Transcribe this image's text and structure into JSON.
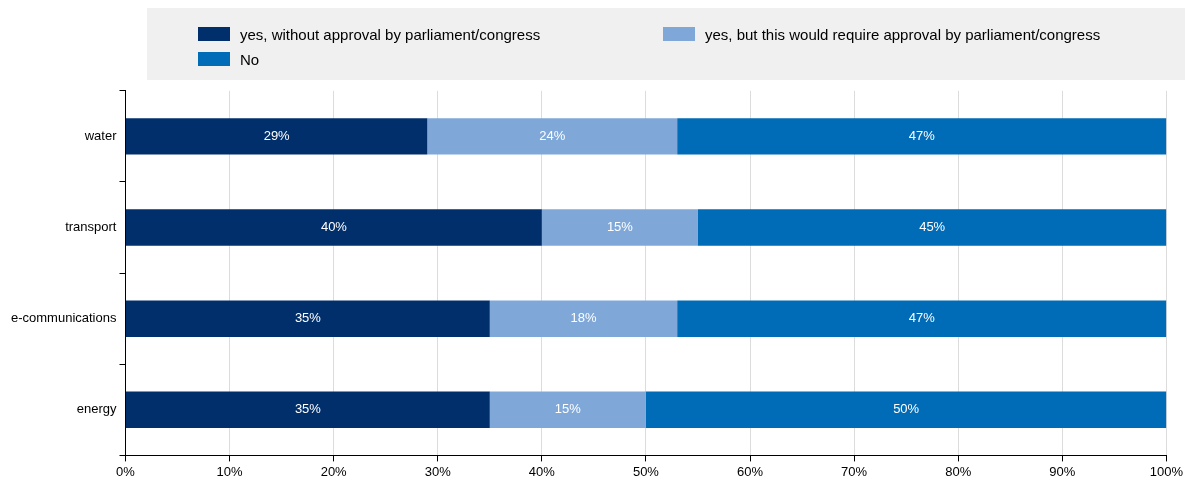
{
  "chart_data": {
    "type": "bar",
    "orientation": "horizontal",
    "stacked": true,
    "categories": [
      "water",
      "transport",
      "e-communications",
      "energy"
    ],
    "series": [
      {
        "name": "yes, without approval by parliament/congress",
        "color": "#002f6c",
        "values": [
          29,
          40,
          35,
          35
        ],
        "value_labels": [
          "29%",
          "40%",
          "35%",
          "35%"
        ]
      },
      {
        "name": "yes, but this would require approval by parliament/congress",
        "color": "#7fa8d9",
        "values": [
          24,
          15,
          18,
          15
        ],
        "value_labels": [
          "24%",
          "15%",
          "18%",
          "15%"
        ]
      },
      {
        "name": "No",
        "color": "#006bb6",
        "values": [
          47,
          45,
          47,
          50
        ],
        "value_labels": [
          "47%",
          "45%",
          "47%",
          "50%"
        ]
      }
    ],
    "xlim": [
      0,
      100
    ],
    "xticks": [
      {
        "value": 0,
        "label": "0%"
      },
      {
        "value": 10,
        "label": "10%"
      },
      {
        "value": 20,
        "label": "20%"
      },
      {
        "value": 30,
        "label": "30%"
      },
      {
        "value": 40,
        "label": "40%"
      },
      {
        "value": 50,
        "label": "50%"
      },
      {
        "value": 60,
        "label": "60%"
      },
      {
        "value": 70,
        "label": "70%"
      },
      {
        "value": 80,
        "label": "80%"
      },
      {
        "value": 90,
        "label": "90%"
      },
      {
        "value": 100,
        "label": "100%"
      }
    ],
    "grid": "x",
    "legend": "top"
  }
}
